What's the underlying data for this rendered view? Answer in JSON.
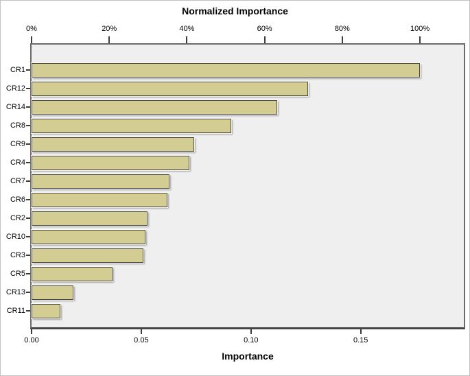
{
  "chart_data": {
    "type": "bar",
    "orientation": "horizontal",
    "title": "Normalized Importance",
    "x_axis_bottom_label": "Importance",
    "categories": [
      "CR1",
      "CR12",
      "CR14",
      "CR8",
      "CR9",
      "CR4",
      "CR7",
      "CR6",
      "CR2",
      "CR10",
      "CR3",
      "CR5",
      "CR13",
      "CR11"
    ],
    "series": [
      {
        "name": "Importance",
        "values": [
          0.177,
          0.126,
          0.112,
          0.091,
          0.074,
          0.072,
          0.063,
          0.062,
          0.053,
          0.052,
          0.051,
          0.037,
          0.019,
          0.013
        ]
      }
    ],
    "normalized_pct": [
      100,
      71,
      63,
      52,
      42,
      41,
      36,
      35,
      30,
      29.5,
      29,
      21,
      11,
      7
    ],
    "top_axis": {
      "tick_labels": [
        "0%",
        "20%",
        "40%",
        "60%",
        "80%",
        "100%"
      ],
      "tick_values_pct": [
        0,
        20,
        40,
        60,
        80,
        100
      ]
    },
    "bottom_axis": {
      "tick_labels": [
        "0.00",
        "0.05",
        "0.10",
        "0.15"
      ],
      "tick_values": [
        0,
        0.05,
        0.1,
        0.15
      ]
    },
    "xlim": [
      0,
      0.197
    ],
    "normalized_100pct_value": 0.177,
    "legend": "none",
    "grid": "off",
    "colors": {
      "bar_fill": "#d3cd93",
      "bar_border": "#4a4a3e",
      "plot_background": "#efefef",
      "axis_line": "#3c3c3c",
      "text": "#000000"
    }
  }
}
